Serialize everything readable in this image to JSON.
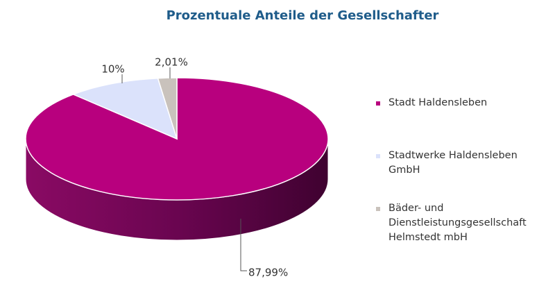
{
  "chart_data": {
    "type": "pie",
    "title": "Prozentuale Anteile der Gesellschafter",
    "slices": [
      {
        "name": "Stadt Haldensleben",
        "value": 87.99,
        "label": "87,99%",
        "color": "#b8007e"
      },
      {
        "name": "Stadtwerke Haldensleben GmbH",
        "value": 10,
        "label": "10%",
        "color": "#dbe2fb"
      },
      {
        "name": "Bäder- und Dienstleistungsgesellschaft Helmstedt mbH",
        "value": 2.01,
        "label": "2,01%",
        "color": "#c9c2bc"
      }
    ],
    "legend": {
      "position": "right",
      "items": [
        [
          "Stadt Haldensleben"
        ],
        [
          "Stadtwerke Haldensleben",
          "GmbH"
        ],
        [
          "Bäder- und",
          "Dienstleistungsgesellschaft",
          "Helmstedt mbH"
        ]
      ]
    }
  }
}
